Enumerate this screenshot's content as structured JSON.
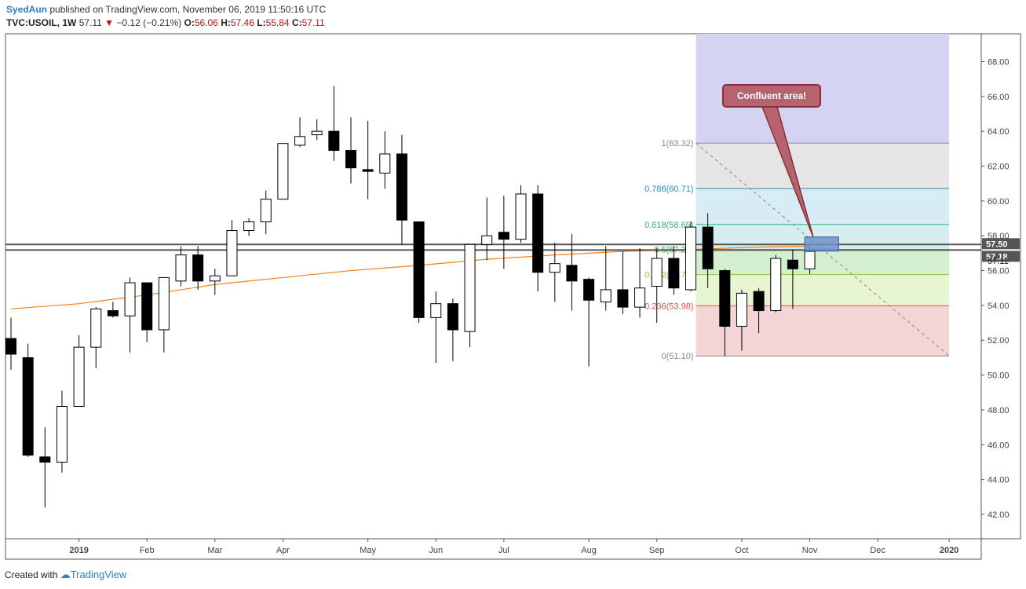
{
  "header": {
    "author": "SyedAun",
    "published_text": "published on TradingView.com, November 06, 2019 11:50:16 UTC",
    "symbol": "TVC:USOIL, 1W",
    "last": "57.11",
    "change": "−0.12 (−0.21%)",
    "o_label": "O:",
    "o_value": "56.06",
    "h_label": "H:",
    "h_value": "57.46",
    "l_label": "L:",
    "l_value": "55.84",
    "c_label": "C:",
    "c_value": "57.11"
  },
  "footer": {
    "created_with": "Created with",
    "brand": "TradingView"
  },
  "annotation": {
    "callout": "Confluent area!"
  },
  "colors": {
    "up_fill": "#ffffff",
    "down_fill": "#000000",
    "candle_line": "#000000",
    "ma": "#f57f17",
    "fib_top": "#d4d4f2",
    "fib_1": "#e5e5e5",
    "fib_786": "#d7ecf4",
    "fib_618": "#d6eeee",
    "fib_5": "#d3efcf",
    "fib_382": "#e8f5d2",
    "fib_236": "#f4d5d5",
    "callout": "#b5646f",
    "zone": "#6f91c9"
  },
  "chart_data": {
    "type": "candlestick",
    "symbol": "TVC:USOIL",
    "timeframe": "1W",
    "ylim": [
      40.6,
      69.6
    ],
    "yticks": [
      "42.00",
      "44.00",
      "46.00",
      "48.00",
      "50.00",
      "52.00",
      "54.00",
      "56.00",
      "58.00",
      "60.00",
      "62.00",
      "64.00",
      "66.00",
      "68.00"
    ],
    "xlabels": [
      {
        "label": "2019",
        "i": 4
      },
      {
        "label": "Feb",
        "i": 8
      },
      {
        "label": "Mar",
        "i": 12
      },
      {
        "label": "Apr",
        "i": 16
      },
      {
        "label": "May",
        "i": 21
      },
      {
        "label": "Jun",
        "i": 25
      },
      {
        "label": "Jul",
        "i": 29
      },
      {
        "label": "Aug",
        "i": 34
      },
      {
        "label": "Sep",
        "i": 38
      },
      {
        "label": "Oct",
        "i": 43
      },
      {
        "label": "Nov",
        "i": 47
      },
      {
        "label": "Dec",
        "i": 51
      },
      {
        "label": "2020",
        "i": 55.2
      }
    ],
    "candles": [
      {
        "o": 52.1,
        "h": 53.3,
        "l": 50.3,
        "c": 51.2
      },
      {
        "o": 51.0,
        "h": 51.8,
        "l": 45.3,
        "c": 45.4
      },
      {
        "o": 45.3,
        "h": 47.0,
        "l": 42.4,
        "c": 45.0
      },
      {
        "o": 45.0,
        "h": 49.1,
        "l": 44.4,
        "c": 48.2
      },
      {
        "o": 48.2,
        "h": 52.3,
        "l": 48.2,
        "c": 51.6
      },
      {
        "o": 51.6,
        "h": 53.9,
        "l": 50.4,
        "c": 53.8
      },
      {
        "o": 53.7,
        "h": 54.2,
        "l": 53.3,
        "c": 53.4
      },
      {
        "o": 53.4,
        "h": 55.6,
        "l": 51.3,
        "c": 55.3
      },
      {
        "o": 55.3,
        "h": 55.3,
        "l": 51.9,
        "c": 52.6
      },
      {
        "o": 52.6,
        "h": 55.6,
        "l": 51.3,
        "c": 55.6
      },
      {
        "o": 55.4,
        "h": 57.4,
        "l": 55.1,
        "c": 56.9
      },
      {
        "o": 56.9,
        "h": 57.4,
        "l": 54.9,
        "c": 55.4
      },
      {
        "o": 55.4,
        "h": 56.1,
        "l": 54.6,
        "c": 55.7
      },
      {
        "o": 55.7,
        "h": 58.9,
        "l": 55.7,
        "c": 58.3
      },
      {
        "o": 58.3,
        "h": 59.0,
        "l": 58.0,
        "c": 58.8
      },
      {
        "o": 58.8,
        "h": 60.6,
        "l": 58.1,
        "c": 60.1
      },
      {
        "o": 60.1,
        "h": 63.3,
        "l": 60.1,
        "c": 63.3
      },
      {
        "o": 63.2,
        "h": 64.8,
        "l": 63.1,
        "c": 63.7
      },
      {
        "o": 63.8,
        "h": 64.7,
        "l": 63.5,
        "c": 64.0
      },
      {
        "o": 64.0,
        "h": 66.6,
        "l": 62.3,
        "c": 62.9
      },
      {
        "o": 62.9,
        "h": 64.8,
        "l": 61.0,
        "c": 61.9
      },
      {
        "o": 61.8,
        "h": 64.6,
        "l": 60.1,
        "c": 61.7
      },
      {
        "o": 61.6,
        "h": 64.0,
        "l": 60.7,
        "c": 62.7
      },
      {
        "o": 62.7,
        "h": 63.8,
        "l": 57.5,
        "c": 58.9
      },
      {
        "o": 58.8,
        "h": 58.8,
        "l": 53.0,
        "c": 53.3
      },
      {
        "o": 53.3,
        "h": 54.8,
        "l": 50.7,
        "c": 54.1
      },
      {
        "o": 54.1,
        "h": 54.4,
        "l": 50.8,
        "c": 52.6
      },
      {
        "o": 52.5,
        "h": 57.5,
        "l": 51.6,
        "c": 57.5
      },
      {
        "o": 57.5,
        "h": 60.2,
        "l": 56.6,
        "c": 58.0
      },
      {
        "o": 58.2,
        "h": 60.3,
        "l": 56.1,
        "c": 57.8
      },
      {
        "o": 57.8,
        "h": 60.9,
        "l": 57.6,
        "c": 60.4
      },
      {
        "o": 60.4,
        "h": 60.9,
        "l": 54.8,
        "c": 55.9
      },
      {
        "o": 55.9,
        "h": 57.6,
        "l": 54.2,
        "c": 56.4
      },
      {
        "o": 56.3,
        "h": 58.1,
        "l": 53.7,
        "c": 55.4
      },
      {
        "o": 55.5,
        "h": 55.6,
        "l": 50.5,
        "c": 54.3
      },
      {
        "o": 54.2,
        "h": 57.4,
        "l": 53.7,
        "c": 54.9
      },
      {
        "o": 54.9,
        "h": 57.1,
        "l": 53.5,
        "c": 53.9
      },
      {
        "o": 53.9,
        "h": 57.3,
        "l": 53.3,
        "c": 55.0
      },
      {
        "o": 55.1,
        "h": 57.3,
        "l": 53.0,
        "c": 56.7
      },
      {
        "o": 56.7,
        "h": 57.4,
        "l": 54.6,
        "c": 55.0
      },
      {
        "o": 54.9,
        "h": 58.8,
        "l": 54.8,
        "c": 58.5
      },
      {
        "o": 58.5,
        "h": 59.3,
        "l": 55.0,
        "c": 56.1
      },
      {
        "o": 56.0,
        "h": 56.1,
        "l": 51.1,
        "c": 52.8
      },
      {
        "o": 52.8,
        "h": 54.9,
        "l": 51.4,
        "c": 54.7
      },
      {
        "o": 54.8,
        "h": 55.0,
        "l": 52.4,
        "c": 53.7
      },
      {
        "o": 53.7,
        "h": 56.9,
        "l": 53.6,
        "c": 56.7
      },
      {
        "o": 56.6,
        "h": 57.2,
        "l": 53.8,
        "c": 56.1
      },
      {
        "o": 56.1,
        "h": 57.5,
        "l": 55.8,
        "c": 57.1
      }
    ],
    "ma_line": [
      {
        "i": 0,
        "v": 53.8
      },
      {
        "i": 4,
        "v": 54.1
      },
      {
        "i": 8,
        "v": 54.6
      },
      {
        "i": 12,
        "v": 55.2
      },
      {
        "i": 16,
        "v": 55.6
      },
      {
        "i": 20,
        "v": 56.0
      },
      {
        "i": 24,
        "v": 56.3
      },
      {
        "i": 28,
        "v": 56.65
      },
      {
        "i": 32,
        "v": 56.9
      },
      {
        "i": 36,
        "v": 57.1
      },
      {
        "i": 40,
        "v": 57.22
      },
      {
        "i": 44,
        "v": 57.35
      },
      {
        "i": 47,
        "v": 57.4
      }
    ],
    "horizontal_lines": [
      {
        "label": "57.50",
        "value": 57.5
      },
      {
        "label": "57.18",
        "value": 57.18
      }
    ],
    "last_price_label": "57.11",
    "fib": {
      "from_index": 40.3,
      "to_index": 55.2,
      "levels": [
        {
          "label": "1(63.32)",
          "value": 63.32,
          "color": "#888888"
        },
        {
          "label": "0.786(60.71)",
          "value": 60.71,
          "color": "#2a8fb5"
        },
        {
          "label": "0.618(58.65)",
          "value": 58.65,
          "color": "#2fb07a"
        },
        {
          "label": "0.5(57.21)",
          "value": 57.21,
          "color": "#2fb04a"
        },
        {
          "label": "0.382(55.77)",
          "value": 55.77,
          "color": "#8cc63f"
        },
        {
          "label": "0.236(53.98)",
          "value": 53.98,
          "color": "#d9534f"
        },
        {
          "label": "0(51.10)",
          "value": 51.1,
          "color": "#888888"
        }
      ]
    },
    "zone": {
      "from_index": 46.7,
      "to_index": 48.7,
      "low": 57.3,
      "high": 57.75
    }
  }
}
